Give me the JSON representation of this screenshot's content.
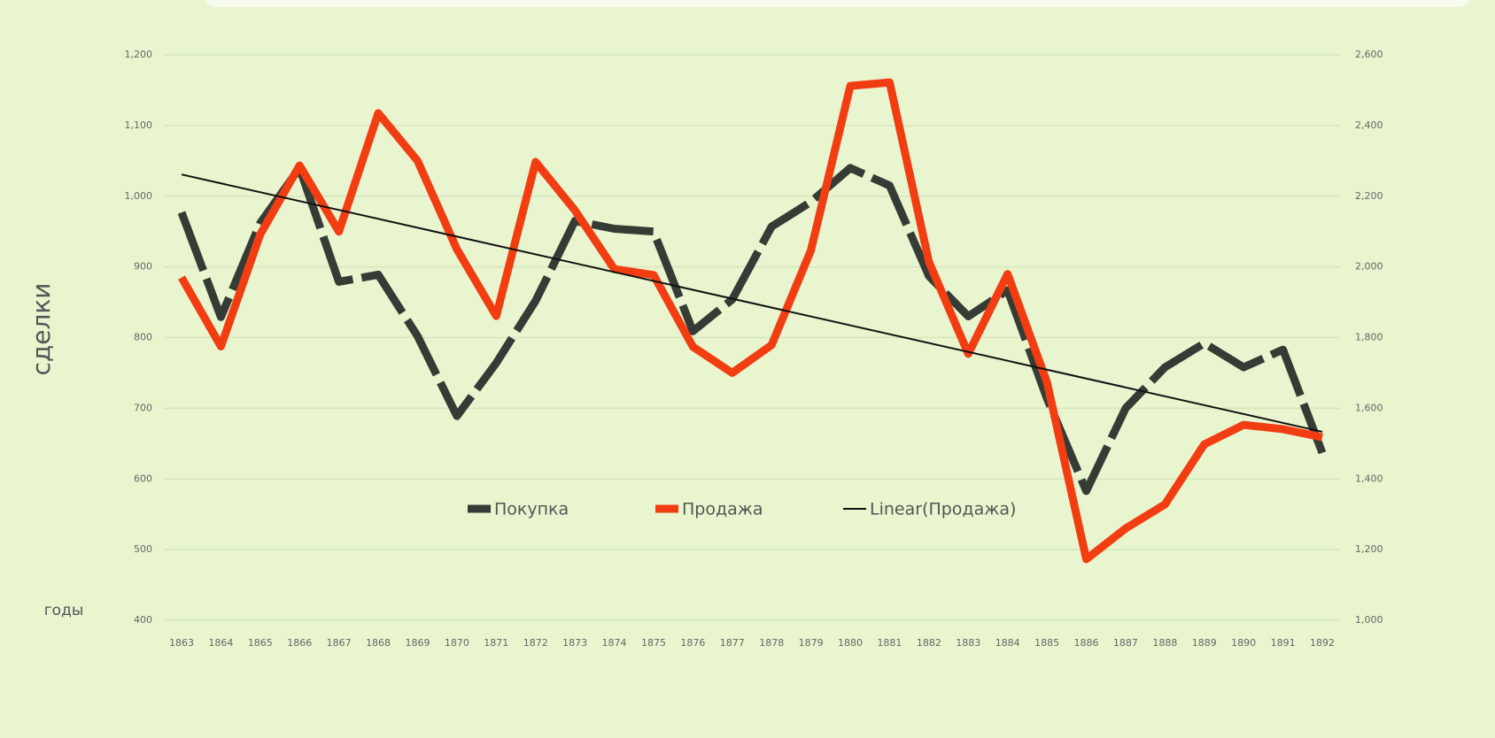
{
  "chart_data": {
    "type": "line",
    "categories": [
      "1863",
      "1864",
      "1865",
      "1866",
      "1867",
      "1868",
      "1869",
      "1870",
      "1871",
      "1872",
      "1873",
      "1874",
      "1875",
      "1876",
      "1877",
      "1878",
      "1879",
      "1880",
      "1881",
      "1882",
      "1883",
      "1884",
      "1885",
      "1886",
      "1887",
      "1888",
      "1889",
      "1890",
      "1891",
      "1892"
    ],
    "series": [
      {
        "name": "Покупка",
        "color": "#353b35",
        "values": [
          977,
          829,
          962,
          1040,
          879,
          889,
          802,
          689,
          764,
          852,
          965,
          954,
          950,
          809,
          854,
          957,
          992,
          1040,
          1015,
          887,
          830,
          867,
          714,
          583,
          700,
          758,
          792,
          758,
          783,
          637
        ]
      },
      {
        "name": "Продажа",
        "color": "#f23d12",
        "axis": "y2",
        "values": [
          1970,
          1775,
          2092,
          2287,
          2100,
          2435,
          2300,
          2050,
          1861,
          2297,
          2160,
          1994,
          1977,
          1774,
          1700,
          1779,
          2047,
          2512,
          2522,
          2014,
          1754,
          1980,
          1674,
          1173,
          1260,
          1328,
          1498,
          1553,
          1541,
          1518
        ]
      }
    ],
    "trendline": {
      "name": "Linear(Продажа)",
      "series": 1,
      "color": "#111111"
    },
    "ylabel": "сделки",
    "xlabel": "годы",
    "ylim": [
      400,
      1200
    ],
    "yticks": [
      400,
      500,
      600,
      700,
      800,
      900,
      {
        "value": 1000,
        "label": "1,000"
      },
      {
        "value": 1100,
        "label": "1,100"
      },
      {
        "value": 1200,
        "label": "1,200"
      }
    ],
    "y2lim": [
      1000,
      2600
    ],
    "y2ticks": [
      {
        "value": 1000,
        "label": "1,000"
      },
      {
        "value": 1200,
        "label": "1,200"
      },
      {
        "value": 1400,
        "label": "1,400"
      },
      {
        "value": 1600,
        "label": "1,600"
      },
      {
        "value": 1800,
        "label": "1,800"
      },
      {
        "value": 2000,
        "label": "2,000"
      },
      {
        "value": 2200,
        "label": "2,200"
      },
      {
        "value": 2400,
        "label": "2,400"
      },
      {
        "value": 2600,
        "label": "2,600"
      }
    ],
    "grid": true,
    "legend": "center"
  }
}
